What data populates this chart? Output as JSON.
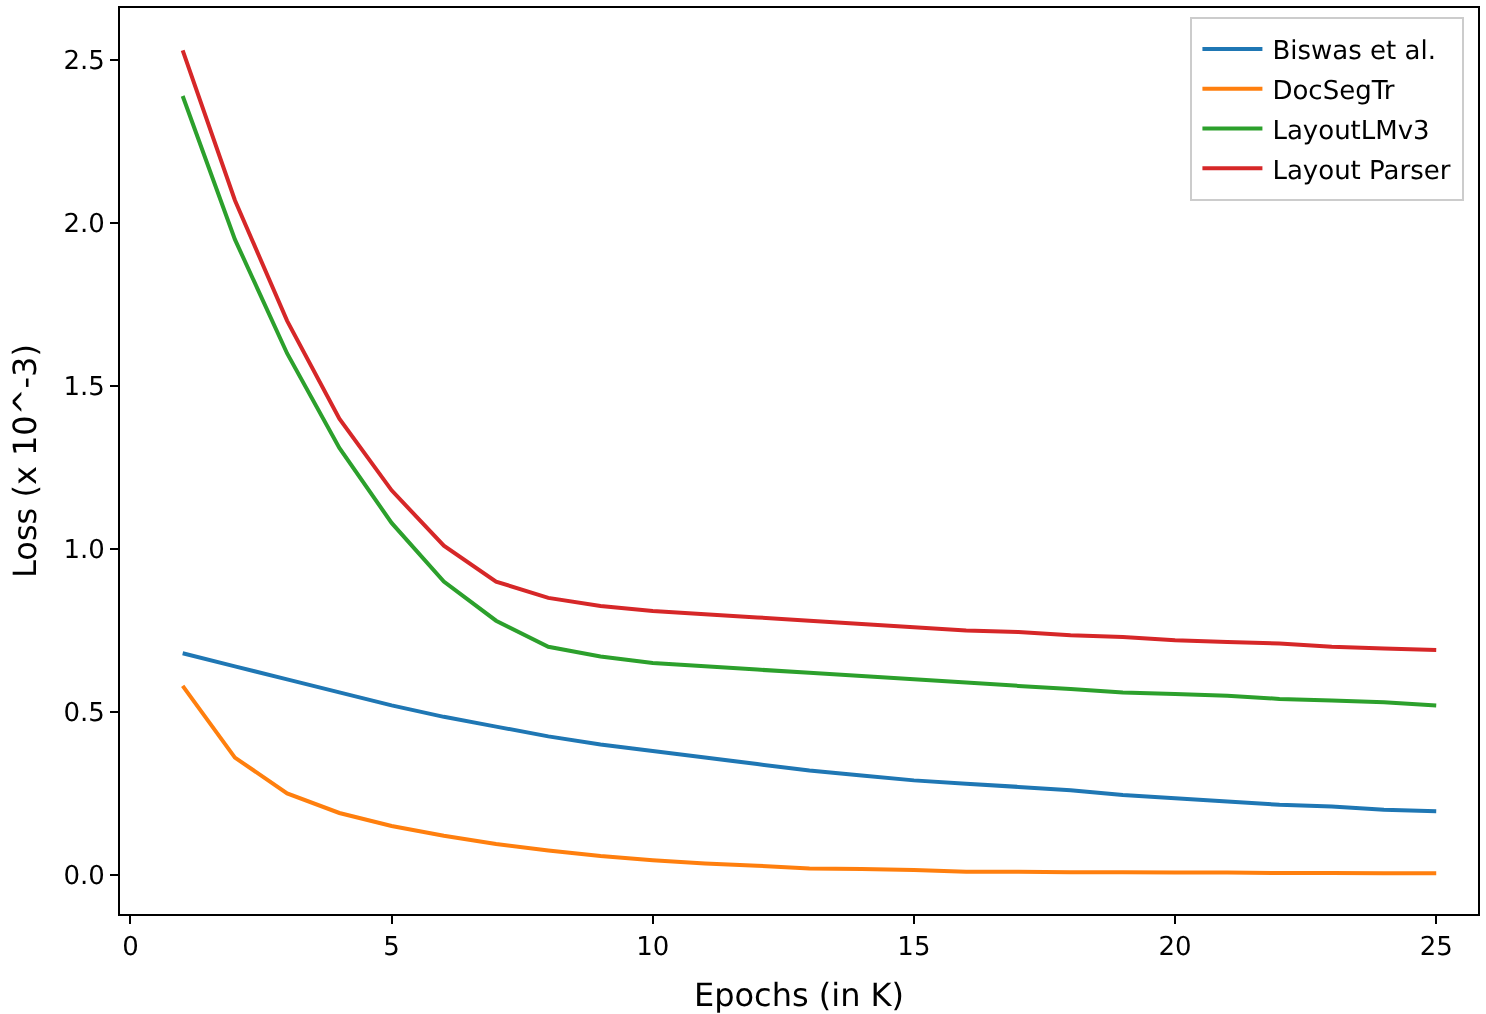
{
  "chart_data": {
    "type": "line",
    "xlabel": "Epochs (in K)",
    "ylabel": "Loss (x 10^-3)",
    "x": [
      1,
      2,
      3,
      4,
      5,
      6,
      7,
      8,
      9,
      10,
      11,
      12,
      13,
      14,
      15,
      16,
      17,
      18,
      19,
      20,
      21,
      22,
      23,
      24,
      25
    ],
    "xlim": [
      -0.2,
      25.8
    ],
    "xticks": [
      0,
      5,
      10,
      15,
      20,
      25
    ],
    "ylim": [
      -0.12,
      2.66
    ],
    "yticks": [
      {
        "value": 0,
        "label": "0.0"
      },
      {
        "value": 0.5,
        "label": "0.5"
      },
      {
        "value": 1,
        "label": "1.0"
      },
      {
        "value": 1.5,
        "label": "1.5"
      },
      {
        "value": 2,
        "label": "2.0"
      },
      {
        "value": 2.5,
        "label": "2.5"
      }
    ],
    "series": [
      {
        "name": "Biswas et al.",
        "color": "#1f77b4",
        "values": [
          0.68,
          0.64,
          0.6,
          0.56,
          0.52,
          0.485,
          0.455,
          0.425,
          0.4,
          0.38,
          0.36,
          0.34,
          0.32,
          0.305,
          0.29,
          0.28,
          0.27,
          0.26,
          0.245,
          0.235,
          0.225,
          0.215,
          0.21,
          0.2,
          0.195
        ]
      },
      {
        "name": "DocSegTr",
        "color": "#ff7f0e",
        "values": [
          0.58,
          0.36,
          0.25,
          0.19,
          0.15,
          0.12,
          0.095,
          0.075,
          0.058,
          0.045,
          0.035,
          0.028,
          0.02,
          0.018,
          0.015,
          0.01,
          0.01,
          0.008,
          0.008,
          0.007,
          0.007,
          0.006,
          0.006,
          0.005,
          0.005
        ]
      },
      {
        "name": "LayoutLMv3",
        "color": "#2ca02c",
        "values": [
          2.39,
          1.95,
          1.6,
          1.31,
          1.08,
          0.9,
          0.78,
          0.7,
          0.67,
          0.65,
          0.64,
          0.63,
          0.62,
          0.61,
          0.6,
          0.59,
          0.58,
          0.57,
          0.56,
          0.555,
          0.55,
          0.54,
          0.535,
          0.53,
          0.52
        ]
      },
      {
        "name": "Layout Parser",
        "color": "#d62728",
        "values": [
          2.53,
          2.07,
          1.7,
          1.4,
          1.18,
          1.01,
          0.9,
          0.85,
          0.825,
          0.81,
          0.8,
          0.79,
          0.78,
          0.77,
          0.76,
          0.75,
          0.745,
          0.735,
          0.73,
          0.72,
          0.715,
          0.71,
          0.7,
          0.695,
          0.69
        ]
      }
    ],
    "legend": "top right",
    "grid": false,
    "marker": "none",
    "line_style": "solid"
  }
}
